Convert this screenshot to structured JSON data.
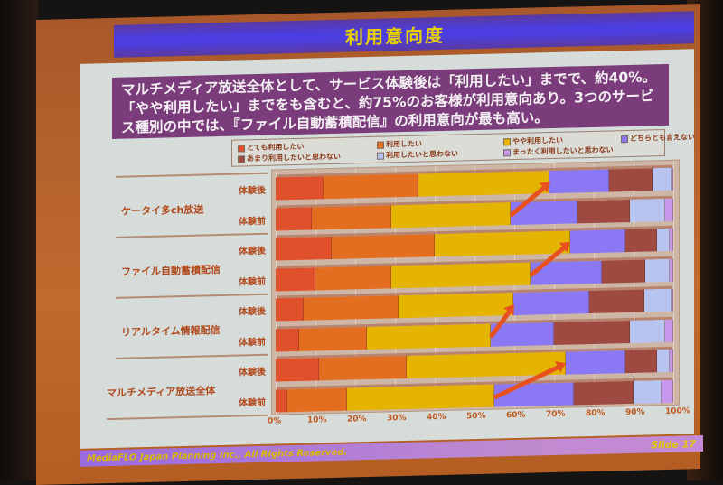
{
  "slide": {
    "title": "利用意向度",
    "summary_lines": [
      "マルチメディア放送全体として、サービス体験後は「利用したい」までで、約40%。",
      "「やや利用したい」までをも含むと、約75%のお客様が利用意向あり。3つのサービ",
      "ス種別の中では、『ファイル自動蓄積配信』の利用意向が最も高い。"
    ],
    "footer_copyright": "MediaFLO Japan Planning Inc., All Rights Reserved.",
    "footer_slide": "Slide 17"
  },
  "chart_data": {
    "type": "bar",
    "orientation": "horizontal",
    "stacked": "100%",
    "title": "利用意向度",
    "xlabel": "",
    "ylabel": "",
    "xlim": [
      0,
      100
    ],
    "x_ticks": [
      "0%",
      "10%",
      "20%",
      "30%",
      "40%",
      "50%",
      "60%",
      "70%",
      "80%",
      "90%",
      "100%"
    ],
    "legend_position": "top",
    "grid": true,
    "groups": [
      "ケータイ多ch放送",
      "ファイル自動蓄積配信",
      "リアルタイム情報配信",
      "マルチメディア放送全体"
    ],
    "categories": [
      "ケータイ多ch放送 体験後",
      "ケータイ多ch放送 体験前",
      "ファイル自動蓄積配信 体験後",
      "ファイル自動蓄積配信 体験前",
      "リアルタイム情報配信 体験後",
      "リアルタイム情報配信 体験前",
      "マルチメディア放送全体 体験後",
      "マルチメディア放送全体 体験前"
    ],
    "row_labels": [
      "体験後",
      "体験前"
    ],
    "series": [
      {
        "name": "とても利用したい",
        "color": "#e0502a",
        "values": [
          12,
          9,
          14,
          10,
          7,
          6,
          11,
          3
        ]
      },
      {
        "name": "利用したい",
        "color": "#e46e20",
        "values": [
          24,
          20,
          26,
          19,
          24,
          17,
          22,
          15
        ]
      },
      {
        "name": "やや利用したい",
        "color": "#e4b400",
        "values": [
          33,
          30,
          34,
          35,
          29,
          31,
          40,
          37
        ]
      },
      {
        "name": "どちらとも言えない",
        "color": "#8a78f4",
        "values": [
          15,
          17,
          14,
          18,
          19,
          16,
          15,
          20
        ]
      },
      {
        "name": "あまり利用したいと思わない",
        "color": "#9e4a40",
        "values": [
          11,
          13,
          8,
          11,
          14,
          19,
          8,
          15
        ]
      },
      {
        "name": "利用したいと思わない",
        "color": "#b8c4f0",
        "values": [
          5,
          9,
          3,
          6,
          7,
          9,
          3,
          7
        ]
      },
      {
        "name": "まったく利用したいと思わない",
        "color": "#c898ec",
        "values": [
          0,
          2,
          1,
          1,
          0,
          2,
          1,
          3
        ]
      }
    ],
    "annotations": [
      "Arrows from 体験前 to 体験後 at the end of the やや利用したい segment in each group"
    ]
  }
}
